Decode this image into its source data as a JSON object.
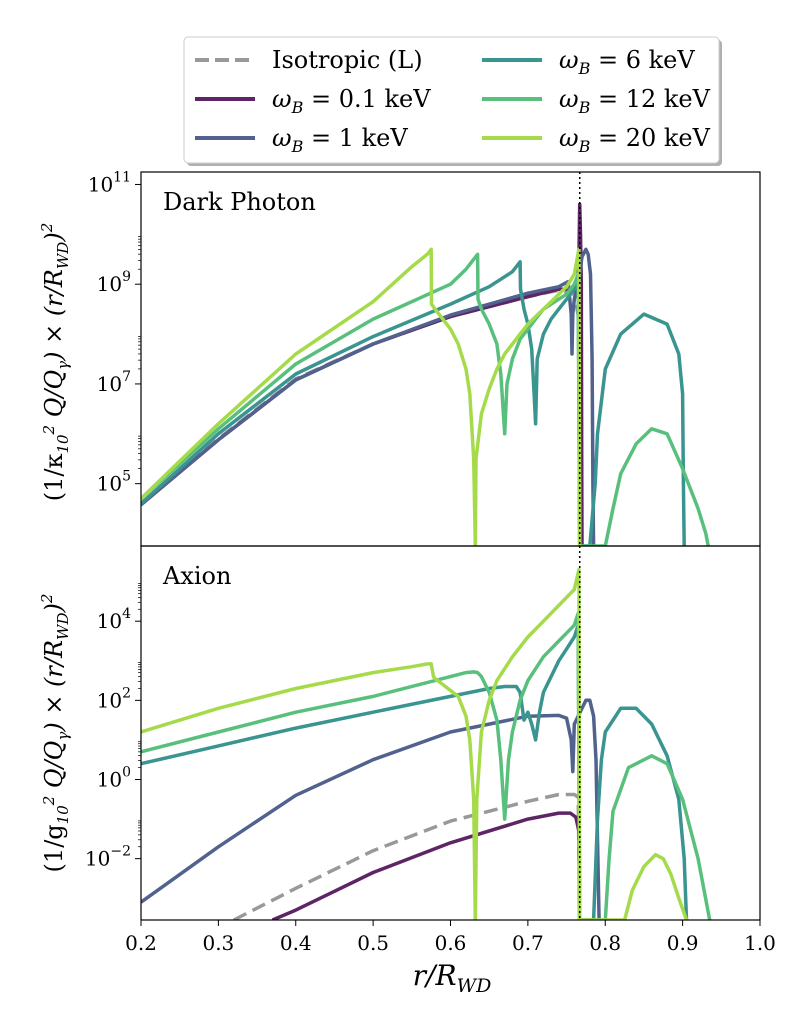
{
  "chart_data": [
    {
      "type": "line",
      "panel_label": "Dark Photon",
      "ylabel": "1/κ₁₀² · Q/Q_γ × (r/R_WD)²",
      "yscale": "log",
      "ylim_log10": [
        3.75,
        11.25
      ],
      "yticks": [
        {
          "exp": 5,
          "label": "10",
          "sup": "5"
        },
        {
          "exp": 7,
          "label": "10",
          "sup": "7"
        },
        {
          "exp": 9,
          "label": "10",
          "sup": "9"
        },
        {
          "exp": 11,
          "label": "10",
          "sup": "11"
        }
      ],
      "vline_x": 0.767,
      "series": [
        {
          "name": "Isotropic (L)",
          "color": "#999999",
          "dash": true,
          "x": [
            0.2,
            0.3,
            0.4,
            0.5,
            0.6,
            0.7,
            0.74,
            0.76,
            0.766,
            0.767
          ],
          "y_log10": [
            4.6,
            5.9,
            7.1,
            7.8,
            8.35,
            8.75,
            8.88,
            8.8,
            8.3,
            3.75
          ]
        },
        {
          "name": "ω_B = 0.1 keV",
          "color": "#5e2566",
          "dash": false,
          "x": [
            0.2,
            0.3,
            0.4,
            0.5,
            0.6,
            0.7,
            0.74,
            0.76,
            0.764,
            0.766,
            0.767,
            0.768,
            0.769,
            0.7695,
            0.77
          ],
          "y_log10": [
            4.58,
            5.88,
            7.08,
            7.8,
            8.35,
            8.75,
            8.9,
            8.9,
            8.8,
            9.5,
            10.6,
            10.0,
            9.0,
            5.5,
            3.75
          ]
        },
        {
          "name": "ω_B = 1 keV",
          "color": "#52628e",
          "dash": false,
          "x": [
            0.2,
            0.3,
            0.4,
            0.5,
            0.6,
            0.7,
            0.74,
            0.752,
            0.756,
            0.757,
            0.758,
            0.76,
            0.765,
            0.77,
            0.775,
            0.778,
            0.781,
            0.783,
            0.784,
            0.785
          ],
          "y_log10": [
            4.58,
            5.88,
            7.08,
            7.8,
            8.38,
            8.82,
            8.95,
            9.05,
            8.4,
            7.6,
            8.4,
            8.7,
            9.0,
            9.55,
            9.7,
            9.6,
            9.2,
            7.5,
            5.0,
            3.75
          ]
        },
        {
          "name": "ω_B = 6 keV",
          "color": "#3a9490",
          "dash": false,
          "x": [
            0.2,
            0.3,
            0.4,
            0.5,
            0.6,
            0.65,
            0.68,
            0.69,
            0.6905,
            0.695,
            0.7,
            0.705,
            0.708,
            0.71,
            0.712,
            0.72,
            0.73,
            0.74,
            0.75,
            0.76,
            0.765,
            0.767,
            0.775,
            0.78,
            0.787,
            0.79,
            0.8,
            0.82,
            0.85,
            0.88,
            0.895,
            0.9,
            0.901,
            0.902
          ],
          "y_log10": [
            4.6,
            6.0,
            7.2,
            7.95,
            8.6,
            8.95,
            9.25,
            9.45,
            8.9,
            8.5,
            8.2,
            7.7,
            6.8,
            6.2,
            7.5,
            8.0,
            8.3,
            8.5,
            8.7,
            8.9,
            9.0,
            3.75,
            3.75,
            3.75,
            5.0,
            6.0,
            7.3,
            8.0,
            8.4,
            8.2,
            7.6,
            6.8,
            5.0,
            3.75
          ]
        },
        {
          "name": "ω_B = 12 keV",
          "color": "#58c07c",
          "dash": false,
          "x": [
            0.2,
            0.3,
            0.4,
            0.5,
            0.6,
            0.62,
            0.63,
            0.635,
            0.6355,
            0.64,
            0.65,
            0.66,
            0.665,
            0.67,
            0.673,
            0.68,
            0.69,
            0.7,
            0.71,
            0.72,
            0.73,
            0.74,
            0.75,
            0.76,
            0.765,
            0.767,
            0.8,
            0.81,
            0.82,
            0.84,
            0.86,
            0.88,
            0.9,
            0.92,
            0.93,
            0.933
          ],
          "y_log10": [
            4.7,
            6.1,
            7.4,
            8.3,
            9.0,
            9.3,
            9.5,
            9.6,
            8.7,
            8.5,
            8.2,
            7.8,
            7.2,
            6.0,
            7.0,
            7.5,
            7.9,
            8.1,
            8.3,
            8.5,
            8.6,
            8.7,
            8.8,
            9.0,
            9.2,
            3.75,
            3.75,
            4.5,
            5.2,
            5.8,
            6.1,
            6.0,
            5.3,
            4.5,
            4.0,
            3.75
          ]
        },
        {
          "name": "ω_B = 20 keV",
          "color": "#a5db4a",
          "dash": false,
          "x": [
            0.2,
            0.3,
            0.4,
            0.5,
            0.55,
            0.57,
            0.575,
            0.5755,
            0.58,
            0.59,
            0.6,
            0.61,
            0.62,
            0.625,
            0.63,
            0.632,
            0.633,
            0.64,
            0.65,
            0.66,
            0.67,
            0.68,
            0.69,
            0.7,
            0.71,
            0.72,
            0.73,
            0.74,
            0.75,
            0.76,
            0.766,
            0.767
          ],
          "y_log10": [
            4.7,
            6.2,
            7.6,
            8.65,
            9.35,
            9.6,
            9.7,
            8.6,
            8.5,
            8.3,
            8.1,
            7.8,
            7.3,
            6.8,
            5.5,
            3.75,
            5.5,
            6.4,
            6.9,
            7.3,
            7.6,
            7.8,
            8.0,
            8.2,
            8.35,
            8.5,
            8.65,
            8.8,
            8.95,
            9.2,
            9.7,
            3.75
          ]
        }
      ]
    },
    {
      "type": "line",
      "panel_label": "Axion",
      "ylabel": "1/g₁₀² · Q/Q_γ × (r/R_WD)²",
      "yscale": "log",
      "ylim_log10": [
        -3.55,
        5.9
      ],
      "yticks": [
        {
          "exp": -2,
          "label": "10",
          "sup": "−2"
        },
        {
          "exp": 0,
          "label": "10",
          "sup": "0"
        },
        {
          "exp": 2,
          "label": "10",
          "sup": "2"
        },
        {
          "exp": 4,
          "label": "10",
          "sup": "4"
        }
      ],
      "vline_x": 0.767,
      "series": [
        {
          "name": "Isotropic (L)",
          "color": "#999999",
          "dash": true,
          "x": [
            0.32,
            0.4,
            0.5,
            0.6,
            0.7,
            0.74,
            0.76,
            0.765,
            0.767
          ],
          "y_log10": [
            -3.55,
            -2.75,
            -1.8,
            -1.05,
            -0.55,
            -0.38,
            -0.38,
            -0.45,
            -3.55
          ]
        },
        {
          "name": "ω_B = 0.1 keV",
          "color": "#5e2566",
          "dash": false,
          "x": [
            0.37,
            0.4,
            0.5,
            0.6,
            0.7,
            0.74,
            0.755,
            0.762,
            0.766,
            0.767
          ],
          "y_log10": [
            -3.55,
            -3.3,
            -2.35,
            -1.6,
            -1.0,
            -0.85,
            -0.85,
            -0.95,
            -1.3,
            -3.55
          ]
        },
        {
          "name": "ω_B = 1 keV",
          "color": "#52628e",
          "dash": false,
          "x": [
            0.2,
            0.3,
            0.4,
            0.5,
            0.6,
            0.7,
            0.74,
            0.75,
            0.756,
            0.758,
            0.76,
            0.765,
            0.77,
            0.775,
            0.78,
            0.785,
            0.788,
            0.79,
            0.792
          ],
          "y_log10": [
            -3.1,
            -1.7,
            -0.4,
            0.5,
            1.2,
            1.6,
            1.62,
            1.55,
            1.0,
            0.2,
            1.4,
            1.6,
            1.8,
            2.0,
            2.0,
            1.6,
            0.5,
            -1.5,
            -3.55
          ]
        },
        {
          "name": "ω_B = 6 keV",
          "color": "#3a9490",
          "dash": false,
          "x": [
            0.2,
            0.3,
            0.4,
            0.5,
            0.6,
            0.65,
            0.67,
            0.68,
            0.685,
            0.69,
            0.695,
            0.7,
            0.705,
            0.71,
            0.715,
            0.72,
            0.73,
            0.74,
            0.75,
            0.76,
            0.765,
            0.767,
            0.785,
            0.79,
            0.795,
            0.8,
            0.82,
            0.84,
            0.86,
            0.88,
            0.895,
            0.902,
            0.905
          ],
          "y_log10": [
            0.4,
            0.85,
            1.3,
            1.7,
            2.1,
            2.3,
            2.35,
            2.35,
            2.35,
            2.2,
            1.5,
            1.7,
            1.4,
            1.0,
            1.7,
            2.2,
            2.6,
            3.0,
            3.3,
            3.6,
            3.9,
            -3.55,
            -3.55,
            -1.0,
            0.5,
            1.2,
            1.8,
            1.8,
            1.4,
            0.6,
            -0.5,
            -2.0,
            -3.55
          ]
        },
        {
          "name": "ω_B = 12 keV",
          "color": "#58c07c",
          "dash": false,
          "x": [
            0.2,
            0.3,
            0.4,
            0.5,
            0.6,
            0.62,
            0.63,
            0.635,
            0.64,
            0.65,
            0.66,
            0.665,
            0.67,
            0.675,
            0.68,
            0.69,
            0.7,
            0.72,
            0.74,
            0.76,
            0.765,
            0.767,
            0.8,
            0.805,
            0.81,
            0.83,
            0.86,
            0.88,
            0.9,
            0.92,
            0.935
          ],
          "y_log10": [
            0.7,
            1.2,
            1.7,
            2.1,
            2.6,
            2.7,
            2.72,
            2.7,
            2.6,
            2.2,
            1.5,
            0.5,
            -1.0,
            0.5,
            1.2,
            2.0,
            2.5,
            3.1,
            3.5,
            3.9,
            4.2,
            -3.55,
            -3.55,
            -2.0,
            -0.8,
            0.3,
            0.6,
            0.4,
            -0.5,
            -2.0,
            -3.55
          ]
        },
        {
          "name": "ω_B = 20 keV",
          "color": "#a5db4a",
          "dash": false,
          "x": [
            0.2,
            0.3,
            0.4,
            0.5,
            0.55,
            0.57,
            0.575,
            0.578,
            0.58,
            0.59,
            0.6,
            0.61,
            0.62,
            0.625,
            0.63,
            0.632,
            0.634,
            0.64,
            0.65,
            0.66,
            0.68,
            0.7,
            0.72,
            0.74,
            0.76,
            0.766,
            0.767,
            0.825,
            0.835,
            0.85,
            0.865,
            0.875,
            0.885,
            0.895,
            0.905
          ],
          "y_log10": [
            1.2,
            1.8,
            2.3,
            2.7,
            2.85,
            2.92,
            2.92,
            2.6,
            2.55,
            2.4,
            2.25,
            2.1,
            1.6,
            1.0,
            -0.5,
            -3.55,
            -0.5,
            1.2,
            2.0,
            2.5,
            3.1,
            3.6,
            4.0,
            4.4,
            4.8,
            5.3,
            -3.55,
            -3.55,
            -2.8,
            -2.2,
            -1.9,
            -2.0,
            -2.4,
            -3.0,
            -3.55
          ]
        }
      ]
    }
  ],
  "xaxis": {
    "label_main": "r/R",
    "label_sub": "WD",
    "xlim": [
      0.2,
      1.0
    ],
    "ticks": [
      "0.2",
      "0.3",
      "0.4",
      "0.5",
      "0.6",
      "0.7",
      "0.8",
      "0.9",
      "1.0"
    ]
  },
  "legend": {
    "entries": [
      {
        "label": "Isotropic (L)",
        "color": "#999999",
        "dash": true
      },
      {
        "label": "ω_B = 0.1 keV",
        "color": "#5e2566",
        "dash": false
      },
      {
        "label": "ω_B = 1 keV",
        "color": "#52628e",
        "dash": false
      },
      {
        "label": "ω_B = 6 keV",
        "color": "#3a9490",
        "dash": false
      },
      {
        "label": "ω_B = 12 keV",
        "color": "#58c07c",
        "dash": false
      },
      {
        "label": "ω_B = 20 keV",
        "color": "#a5db4a",
        "dash": false
      }
    ]
  }
}
